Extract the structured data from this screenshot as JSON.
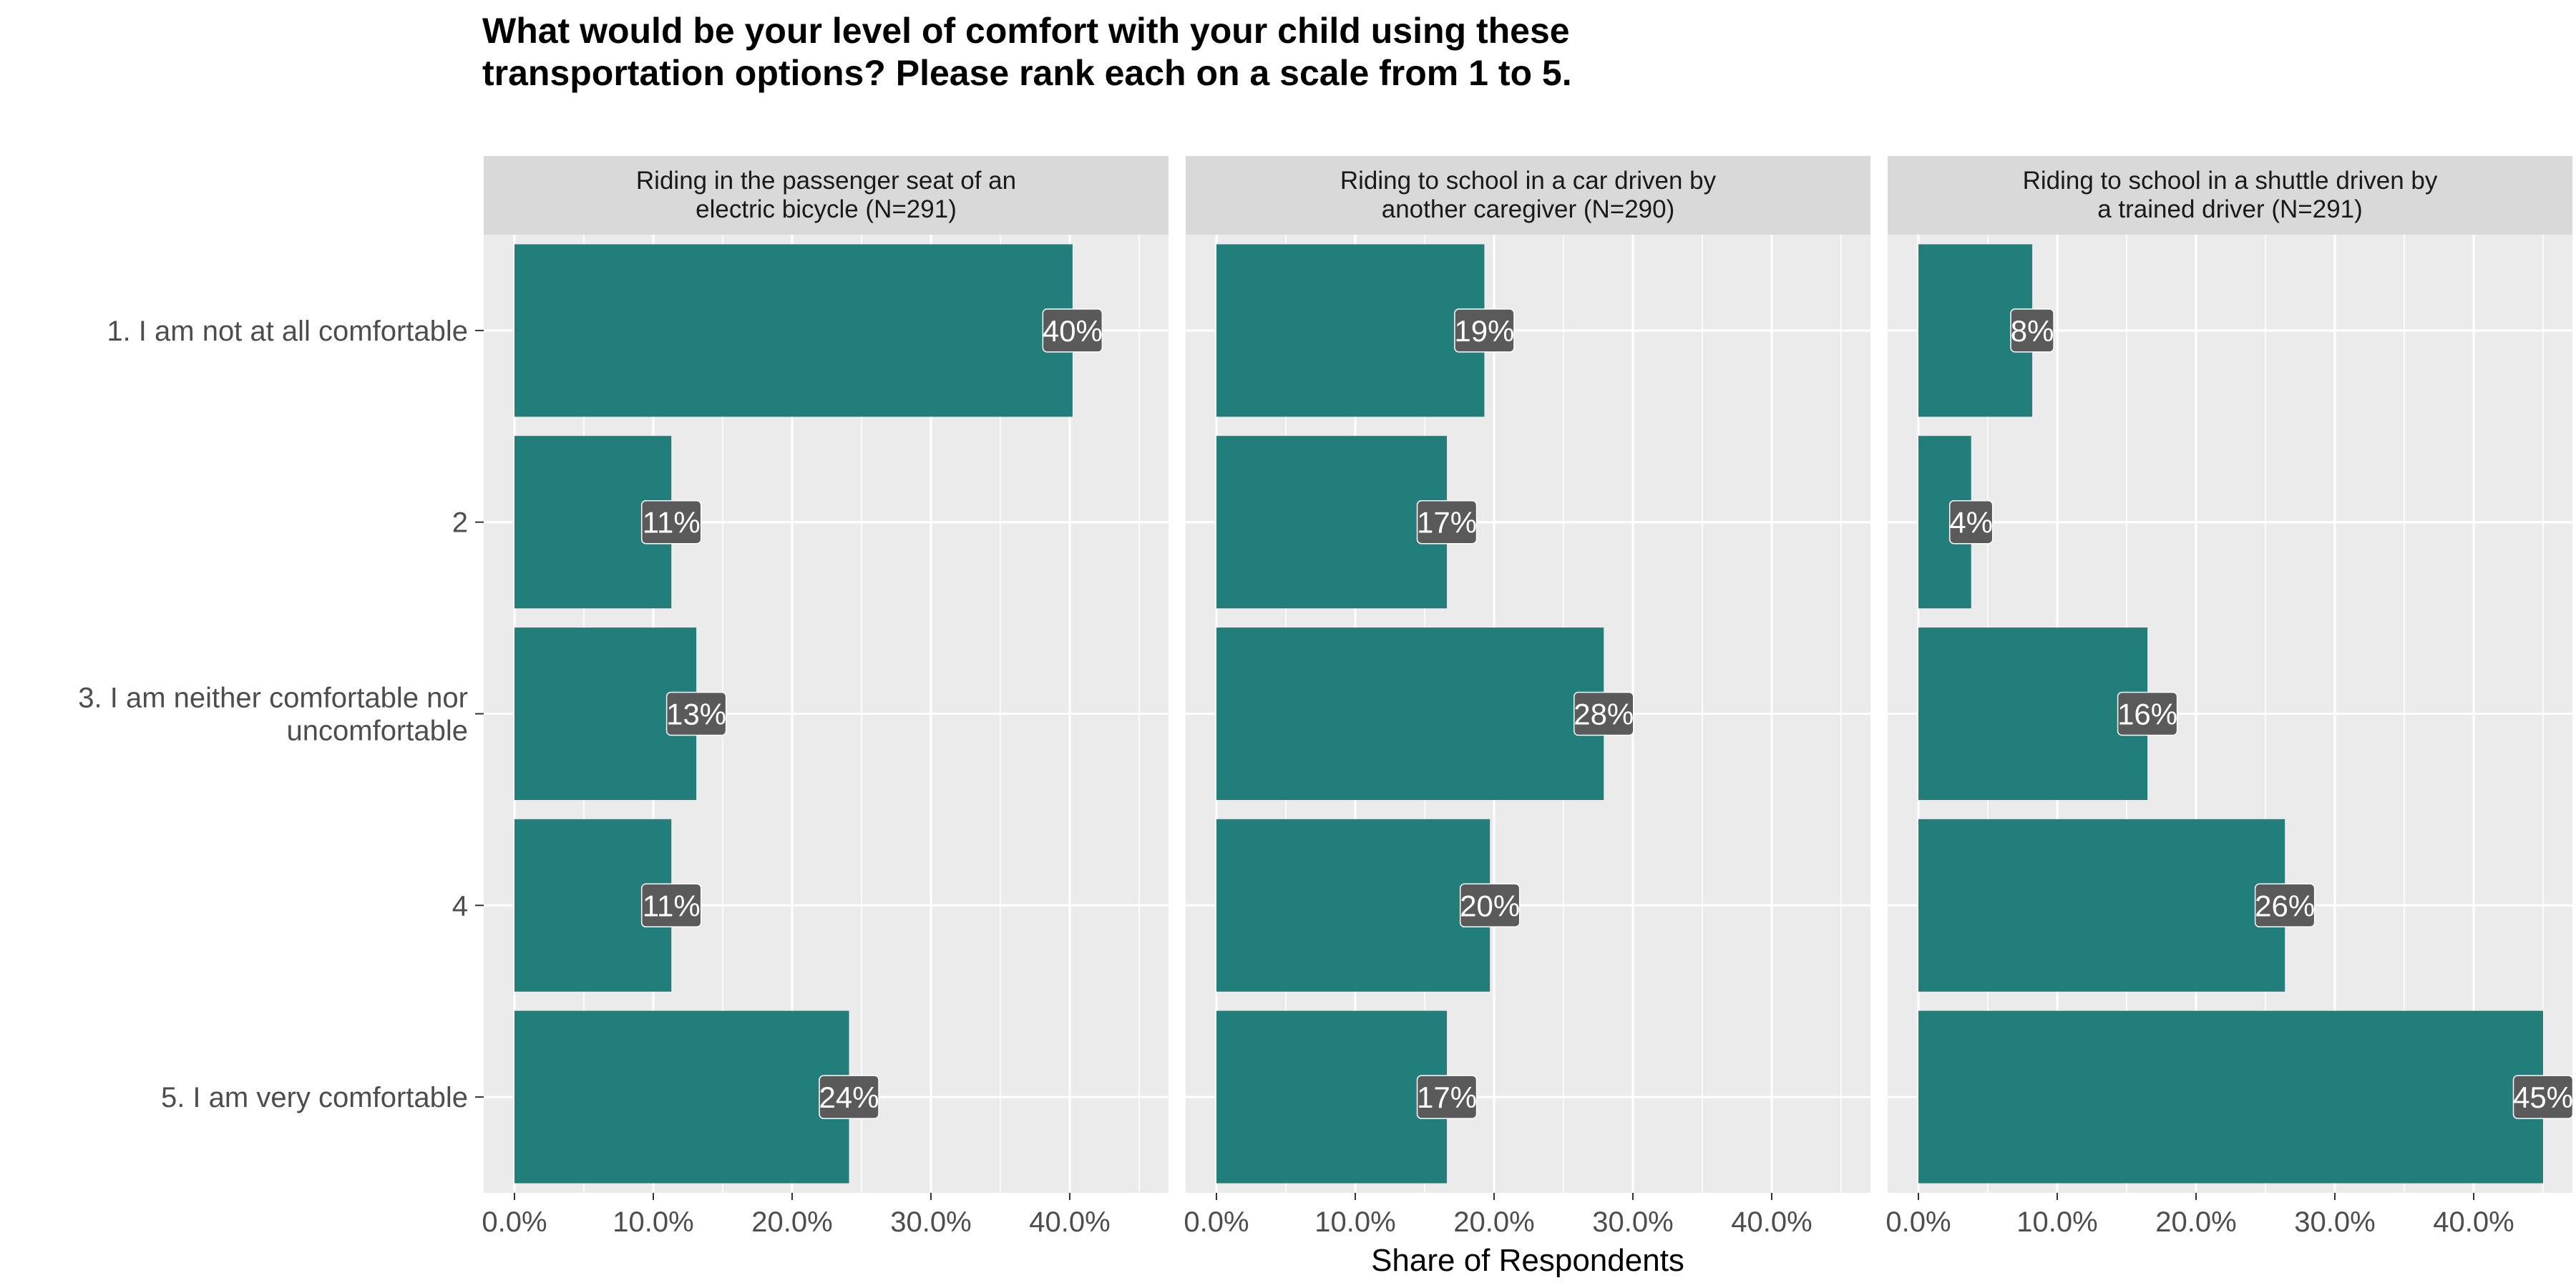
{
  "title": "What would be your level of comfort with your child using these transportation options? Please rank each on a scale from 1 to 5.",
  "xlabel": "Share of Respondents",
  "colors": {
    "bar": "#1a7a77",
    "panel_bg": "#ebebeb",
    "strip_bg": "#d9d9d9",
    "grid": "#ffffff",
    "label_box": "#5a5a5a",
    "label_text": "#ffffff",
    "axis_text": "#4d4d4d"
  },
  "chart_data": {
    "type": "bar",
    "orientation": "horizontal",
    "facet": true,
    "categories": [
      "1. I am not at all comfortable",
      "2",
      "3. I am neither comfortable nor uncomfortable",
      "4",
      "5. I am very comfortable"
    ],
    "xlabel": "Share of Respondents",
    "ylabel": "",
    "xlim": [
      0,
      46
    ],
    "xticks": [
      0,
      10,
      20,
      30,
      40
    ],
    "xtick_labels": [
      "0.0%",
      "10.0%",
      "20.0%",
      "30.0%",
      "40.0%"
    ],
    "grid": true,
    "legend": "none",
    "panels": [
      {
        "title_lines": [
          "Riding in the passenger seat of an",
          "electric bicycle (N=291)"
        ],
        "values": [
          40.2,
          11.3,
          13.1,
          11.3,
          24.1
        ],
        "labels": [
          "40%",
          "11%",
          "13%",
          "11%",
          "24%"
        ]
      },
      {
        "title_lines": [
          "Riding to school in a car driven by",
          "another caregiver (N=290)"
        ],
        "values": [
          19.3,
          16.6,
          27.9,
          19.7,
          16.6
        ],
        "labels": [
          "19%",
          "17%",
          "28%",
          "20%",
          "17%"
        ]
      },
      {
        "title_lines": [
          "Riding to school in a shuttle driven by",
          "a trained driver (N=291)"
        ],
        "values": [
          8.2,
          3.8,
          16.5,
          26.4,
          45.0
        ],
        "labels": [
          "8%",
          "4%",
          "16%",
          "26%",
          "45%"
        ]
      }
    ]
  }
}
